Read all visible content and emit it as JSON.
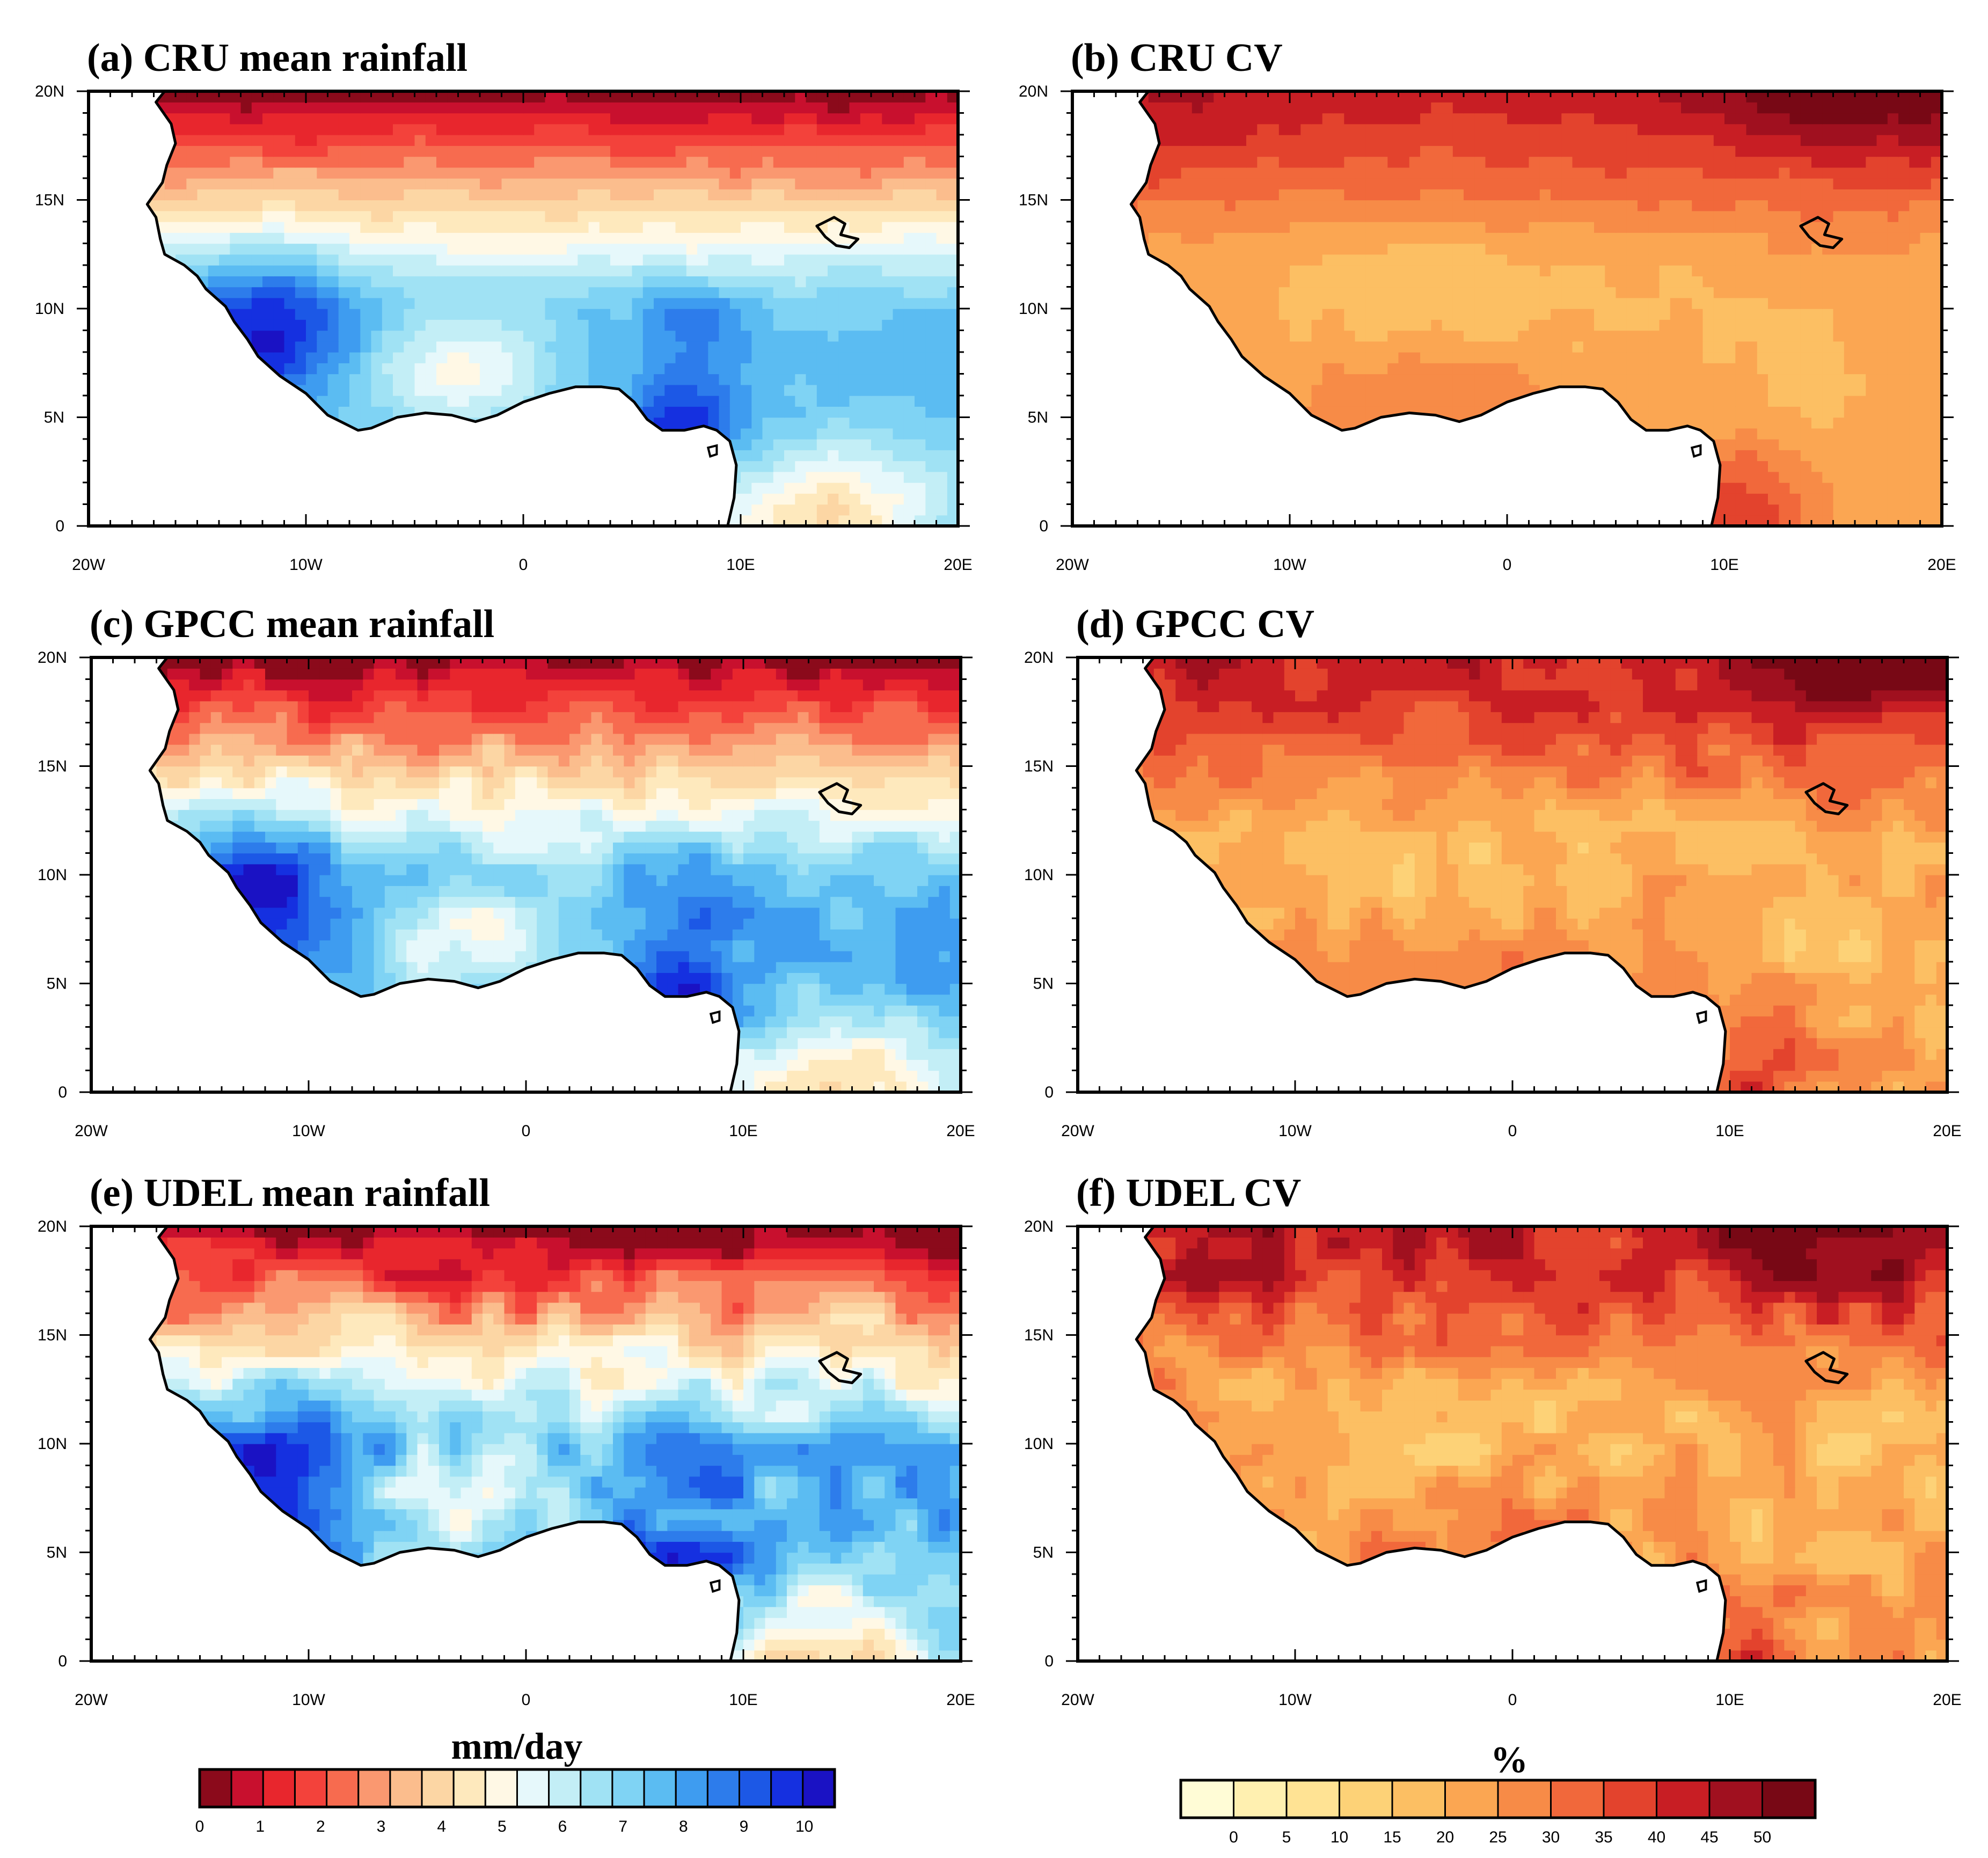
{
  "colors": {
    "rain": [
      "#8b0a1b",
      "#c8102e",
      "#e8262d",
      "#f3423b",
      "#f76b4f",
      "#fa9870",
      "#fbbd8d",
      "#fcd6a4",
      "#fee9bd",
      "#fff8e5",
      "#e6f8fb",
      "#c3eef6",
      "#a0e2f4",
      "#7fd3f4",
      "#5bbcf2",
      "#3e9cf0",
      "#2d7ceb",
      "#1c58e6",
      "#1530e0",
      "#1a12c4"
    ],
    "cv": [
      "#fffcd6",
      "#fff0b0",
      "#ffe394",
      "#fdd277",
      "#fcbf63",
      "#fba652",
      "#f78b47",
      "#f1683b",
      "#e3432d",
      "#c81e24",
      "#a0101f",
      "#780815"
    ],
    "land_outline": "#000000"
  },
  "chart_data": [
    {
      "id": "a",
      "type": "heatmap",
      "title": "(a) CRU mean rainfall",
      "variable": "mean rainfall",
      "units": "mm/day",
      "xlabel": "",
      "ylabel": "",
      "x_ticks": [
        "20W",
        "10W",
        "0",
        "10E",
        "20E"
      ],
      "x_range": [
        -20,
        20
      ],
      "y_ticks": [
        "0",
        "5N",
        "10N",
        "15N",
        "20N"
      ],
      "y_range": [
        0,
        20
      ],
      "latitude_profile_mm_day": [
        {
          "lat": 20,
          "value": 0.3
        },
        {
          "lat": 17,
          "value": 0.8
        },
        {
          "lat": 15,
          "value": 2.5
        },
        {
          "lat": 13,
          "value": 5.5
        },
        {
          "lat": 10,
          "value": 7.0
        },
        {
          "lat": 7,
          "value": 7.5
        },
        {
          "lat": 5,
          "value": 9.0
        },
        {
          "lat": 0,
          "value": 3.0
        }
      ]
    },
    {
      "id": "b",
      "type": "heatmap",
      "title": "(b) CRU CV",
      "variable": "coefficient of variation",
      "units": "%",
      "xlabel": "",
      "ylabel": "",
      "x_ticks": [
        "20W",
        "10W",
        "0",
        "10E",
        "20E"
      ],
      "x_range": [
        -20,
        20
      ],
      "y_ticks": [
        "0",
        "5N",
        "10N",
        "15N",
        "20N"
      ],
      "y_range": [
        0,
        20
      ],
      "latitude_profile_percent": [
        {
          "lat": 20,
          "value": 45
        },
        {
          "lat": 17,
          "value": 33
        },
        {
          "lat": 14,
          "value": 25
        },
        {
          "lat": 10,
          "value": 17
        },
        {
          "lat": 6,
          "value": 22
        },
        {
          "lat": 0,
          "value": 35
        }
      ]
    },
    {
      "id": "c",
      "type": "heatmap",
      "title": "(c) GPCC mean rainfall",
      "variable": "mean rainfall",
      "units": "mm/day",
      "xlabel": "",
      "ylabel": "",
      "x_ticks": [
        "20W",
        "10W",
        "0",
        "10E",
        "20E"
      ],
      "x_range": [
        -20,
        20
      ],
      "y_ticks": [
        "0",
        "5N",
        "10N",
        "15N",
        "20N"
      ],
      "y_range": [
        0,
        20
      ],
      "latitude_profile_mm_day": [
        {
          "lat": 20,
          "value": 0.3
        },
        {
          "lat": 17,
          "value": 0.9
        },
        {
          "lat": 15,
          "value": 2.8
        },
        {
          "lat": 13,
          "value": 5.6
        },
        {
          "lat": 10,
          "value": 7.2
        },
        {
          "lat": 7,
          "value": 7.6
        },
        {
          "lat": 5,
          "value": 9.2
        },
        {
          "lat": 0,
          "value": 3.2
        }
      ]
    },
    {
      "id": "d",
      "type": "heatmap",
      "title": "(d) GPCC CV",
      "variable": "coefficient of variation",
      "units": "%",
      "xlabel": "",
      "ylabel": "",
      "x_ticks": [
        "20W",
        "10W",
        "0",
        "10E",
        "20E"
      ],
      "x_range": [
        -20,
        20
      ],
      "y_ticks": [
        "0",
        "5N",
        "10N",
        "15N",
        "20N"
      ],
      "y_range": [
        0,
        20
      ],
      "latitude_profile_percent": [
        {
          "lat": 20,
          "value": 48
        },
        {
          "lat": 17,
          "value": 36
        },
        {
          "lat": 14,
          "value": 27
        },
        {
          "lat": 10,
          "value": 19
        },
        {
          "lat": 6,
          "value": 24
        },
        {
          "lat": 0,
          "value": 38
        }
      ]
    },
    {
      "id": "e",
      "type": "heatmap",
      "title": "(e) UDEL mean rainfall",
      "variable": "mean rainfall",
      "units": "mm/day",
      "xlabel": "",
      "ylabel": "",
      "x_ticks": [
        "20W",
        "10W",
        "0",
        "10E",
        "20E"
      ],
      "x_range": [
        -20,
        20
      ],
      "y_ticks": [
        "0",
        "5N",
        "10N",
        "15N",
        "20N"
      ],
      "y_range": [
        0,
        20
      ],
      "latitude_profile_mm_day": [
        {
          "lat": 20,
          "value": 0.3
        },
        {
          "lat": 17,
          "value": 1.0
        },
        {
          "lat": 15,
          "value": 3.0
        },
        {
          "lat": 13,
          "value": 5.8
        },
        {
          "lat": 10,
          "value": 7.0
        },
        {
          "lat": 7,
          "value": 7.3
        },
        {
          "lat": 5,
          "value": 8.8
        },
        {
          "lat": 0,
          "value": 3.0
        }
      ]
    },
    {
      "id": "f",
      "type": "heatmap",
      "title": "(f) UDEL CV",
      "variable": "coefficient of variation",
      "units": "%",
      "xlabel": "",
      "ylabel": "",
      "x_ticks": [
        "20W",
        "10W",
        "0",
        "10E",
        "20E"
      ],
      "x_range": [
        -20,
        20
      ],
      "y_ticks": [
        "0",
        "5N",
        "10N",
        "15N",
        "20N"
      ],
      "y_range": [
        0,
        20
      ],
      "latitude_profile_percent": [
        {
          "lat": 20,
          "value": 47
        },
        {
          "lat": 17,
          "value": 35
        },
        {
          "lat": 14,
          "value": 27
        },
        {
          "lat": 10,
          "value": 20
        },
        {
          "lat": 6,
          "value": 25
        },
        {
          "lat": 0,
          "value": 36
        }
      ]
    }
  ],
  "colorbars": {
    "rainfall": {
      "unit_label": "mm/day",
      "tick_labels": [
        "0",
        "1",
        "2",
        "3",
        "4",
        "5",
        "6",
        "7",
        "8",
        "9",
        "10"
      ],
      "min": 0,
      "max": 10.5,
      "n_colors": 20
    },
    "cv": {
      "unit_label": "%",
      "tick_labels": [
        "0",
        "5",
        "10",
        "15",
        "20",
        "25",
        "30",
        "35",
        "40",
        "45",
        "50"
      ],
      "min": -5,
      "max": 55,
      "n_colors": 12
    }
  }
}
